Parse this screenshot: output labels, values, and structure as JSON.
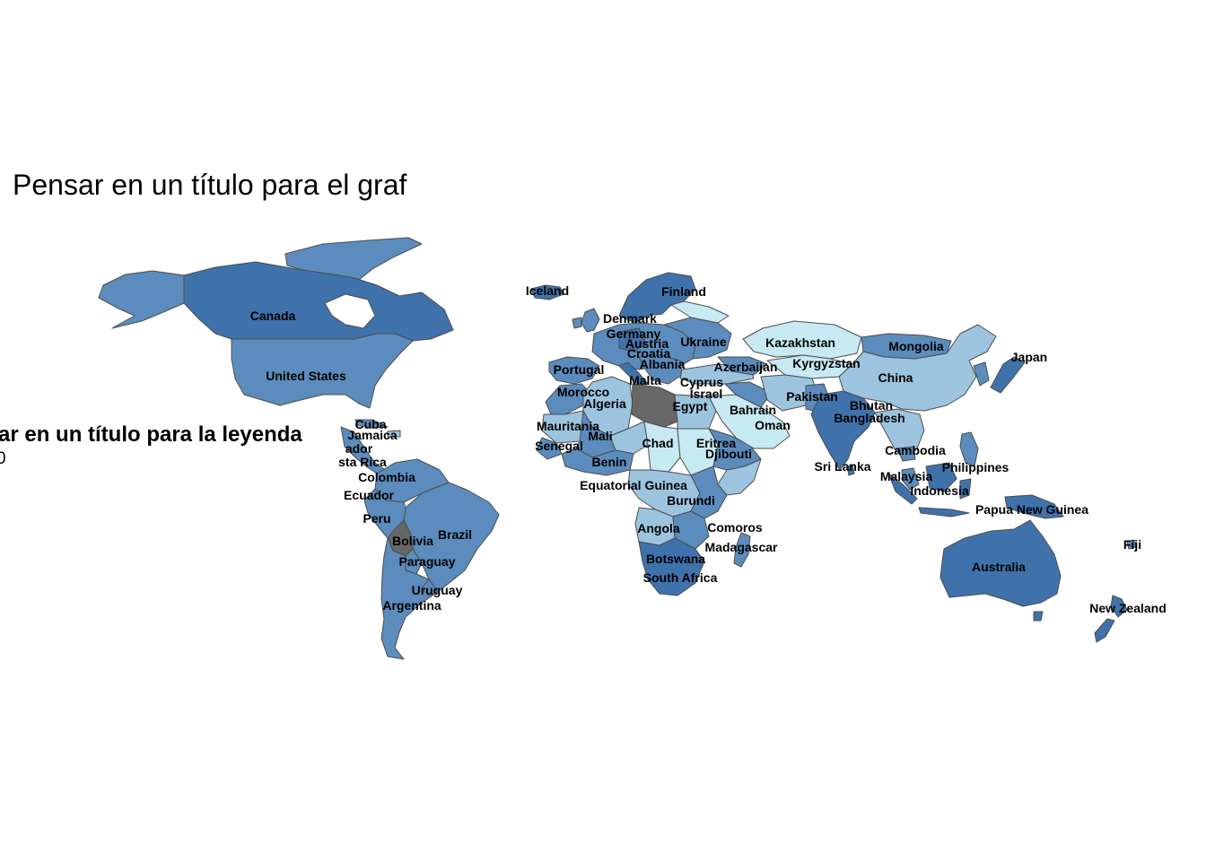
{
  "title": "Pensar en un título para el graf",
  "legend": {
    "title": "ar en un título para la leyenda",
    "value": "0"
  },
  "colors": {
    "background": "#ffffff",
    "border": "#4d4d4d",
    "no_data": "#676767",
    "dark_blue": "#3f72ab",
    "mid_blue": "#5b8cbd",
    "light_blue": "#9dc4df",
    "pale_blue": "#c6e9f2"
  },
  "labels": [
    "Canada",
    "United States",
    "Cuba",
    "Jamaica",
    "ador",
    "sta Rica",
    "Colombia",
    "Ecuador",
    "Peru",
    "Bolivia",
    "Brazil",
    "Paraguay",
    "Uruguay",
    "Argentina",
    "Iceland",
    "Finland",
    "Denmark",
    "Germany",
    "Austria",
    "Croatia",
    "Albania",
    "Ukraine",
    "Portugal",
    "Malta",
    "Azerbaijan",
    "Cyprus",
    "Israel",
    "Morocco",
    "Algeria",
    "Egypt",
    "Bahrain",
    "Oman",
    "Mauritania",
    "Mali",
    "Senegal",
    "Chad",
    "Eritrea",
    "Djibouti",
    "Benin",
    "Equatorial Guinea",
    "Burundi",
    "Angola",
    "Comoros",
    "Madagascar",
    "Botswana",
    "South Africa",
    "Kazakhstan",
    "Kyrgyzstan",
    "Mongolia",
    "China",
    "Japan",
    "Pakistan",
    "Bhutan",
    "Bangladesh",
    "Sri Lanka",
    "Cambodia",
    "Malaysia",
    "Philippines",
    "Indonesia",
    "Papua New Guinea",
    "Fiji",
    "Australia",
    "New Zealand"
  ]
}
